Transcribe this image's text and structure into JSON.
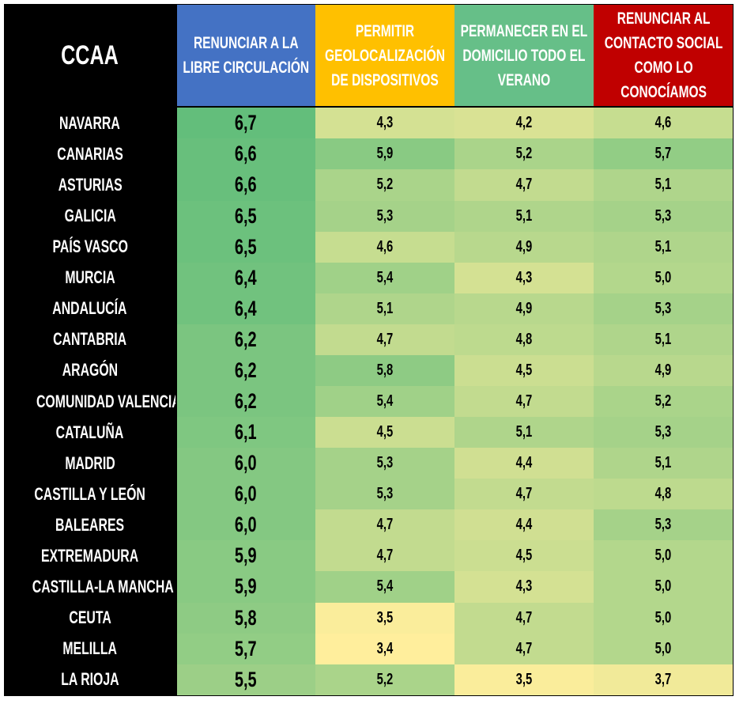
{
  "header": {
    "ccaa": "CCAA",
    "columns": [
      "RENUNCIAR A LA LIBRE CIRCULACIÓN",
      "PERMITIR GEOLOCALIZACIÓN DE DISPOSITIVOS",
      "PERMANECER EN EL DOMICILIO TODO EL VERANO",
      "RENUNCIAR AL CONTACTO SOCIAL COMO LO CONOCÍAMOS"
    ]
  },
  "colors": {
    "low": "#FFEE9C",
    "high": "#63BE7B",
    "blue": "#4472C4",
    "yellow": "#FFC000",
    "green": "#66BF88",
    "red": "#C00000"
  },
  "scale": {
    "min": 3.4,
    "max": 6.7
  },
  "rows": [
    {
      "name": "NAVARRA",
      "values": [
        "6,7",
        "4,3",
        "4,2",
        "4,6"
      ]
    },
    {
      "name": "CANARIAS",
      "values": [
        "6,6",
        "5,9",
        "5,2",
        "5,7"
      ]
    },
    {
      "name": "ASTURIAS",
      "values": [
        "6,6",
        "5,2",
        "4,7",
        "5,1"
      ]
    },
    {
      "name": "GALICIA",
      "values": [
        "6,5",
        "5,3",
        "5,1",
        "5,3"
      ]
    },
    {
      "name": "PAÍS VASCO",
      "values": [
        "6,5",
        "4,6",
        "4,9",
        "5,1"
      ]
    },
    {
      "name": "MURCIA",
      "values": [
        "6,4",
        "5,4",
        "4,3",
        "5,0"
      ]
    },
    {
      "name": "ANDALUCÍA",
      "values": [
        "6,4",
        "5,1",
        "4,9",
        "5,3"
      ]
    },
    {
      "name": "CANTABRIA",
      "values": [
        "6,2",
        "4,7",
        "4,8",
        "5,1"
      ]
    },
    {
      "name": "ARAGÓN",
      "values": [
        "6,2",
        "5,8",
        "4,5",
        "4,9"
      ]
    },
    {
      "name": "COMUNIDAD VALENCIANA",
      "values": [
        "6,2",
        "5,4",
        "4,7",
        "5,2"
      ]
    },
    {
      "name": "CATALUÑA",
      "values": [
        "6,1",
        "4,5",
        "5,1",
        "5,3"
      ]
    },
    {
      "name": "MADRID",
      "values": [
        "6,0",
        "5,3",
        "4,4",
        "5,1"
      ]
    },
    {
      "name": "CASTILLA Y LEÓN",
      "values": [
        "6,0",
        "5,3",
        "4,7",
        "4,8"
      ]
    },
    {
      "name": "BALEARES",
      "values": [
        "6,0",
        "4,7",
        "4,4",
        "5,3"
      ]
    },
    {
      "name": "EXTREMADURA",
      "values": [
        "5,9",
        "4,7",
        "4,5",
        "5,0"
      ]
    },
    {
      "name": "CASTILLA-LA MANCHA",
      "values": [
        "5,9",
        "5,4",
        "4,3",
        "5,0"
      ]
    },
    {
      "name": "CEUTA",
      "values": [
        "5,8",
        "3,5",
        "4,7",
        "5,0"
      ]
    },
    {
      "name": "MELILLA",
      "values": [
        "5,7",
        "3,4",
        "4,7",
        "5,0"
      ]
    },
    {
      "name": "LA RIOJA",
      "values": [
        "5,5",
        "5,2",
        "3,5",
        "3,7"
      ]
    }
  ]
}
